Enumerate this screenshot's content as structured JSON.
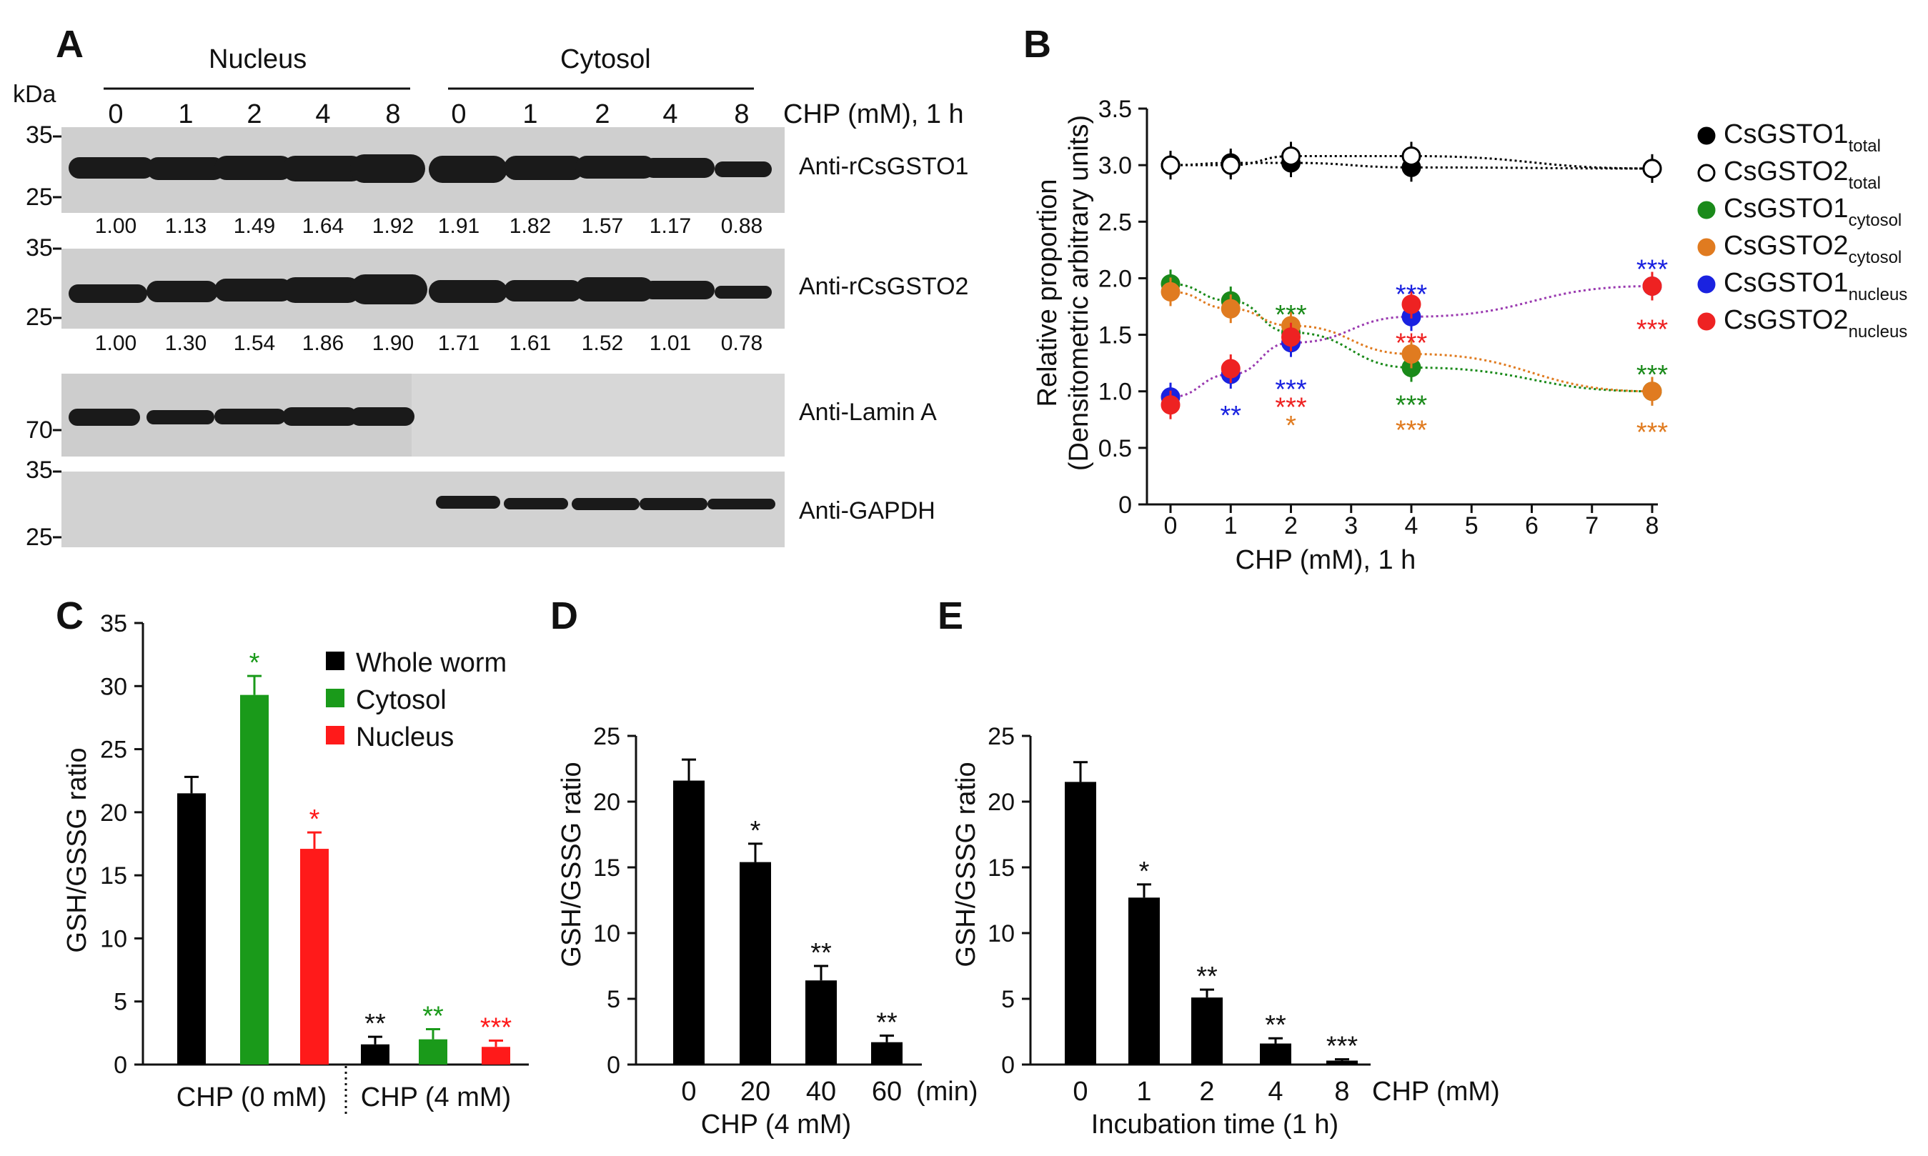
{
  "panels": {
    "a": "A",
    "b": "B",
    "c": "C",
    "d": "D",
    "e": "E"
  },
  "blot": {
    "nucleus_label": "Nucleus",
    "cytosol_label": "Cytosol",
    "kda_label": "kDa",
    "treatment_label": "CHP (mM), 1 h",
    "lanes": [
      "0",
      "1",
      "2",
      "4",
      "8",
      "0",
      "1",
      "2",
      "4",
      "8"
    ],
    "rows": [
      {
        "label": "Anti-rCsGSTO1",
        "markers": [
          "35",
          "25"
        ],
        "values": [
          "1.00",
          "1.13",
          "1.49",
          "1.64",
          "1.92",
          "1.91",
          "1.82",
          "1.57",
          "1.17",
          "0.88"
        ]
      },
      {
        "label": "Anti-rCsGSTO2",
        "markers": [
          "35",
          "25"
        ],
        "values": [
          "1.00",
          "1.30",
          "1.54",
          "1.86",
          "1.90",
          "1.71",
          "1.61",
          "1.52",
          "1.01",
          "0.78"
        ]
      },
      {
        "label": "Anti-Lamin A",
        "markers": [
          "70"
        ]
      },
      {
        "label": "Anti-GAPDH",
        "markers": [
          "35",
          "25"
        ]
      }
    ]
  },
  "chart_data": [
    {
      "panel": "B",
      "type": "scatter",
      "xlabel": "CHP (mM), 1 h",
      "ylabel_line1": "Relative proportion",
      "ylabel_line2": "(Densitometric arbitrary units)",
      "x_ticks": [
        "0",
        "1",
        "2",
        "3",
        "4",
        "5",
        "6",
        "7",
        "8"
      ],
      "y_ticks": [
        "0",
        "0.5",
        "1.0",
        "1.5",
        "2.0",
        "2.5",
        "3.0",
        "3.5"
      ],
      "xlim": [
        0,
        8
      ],
      "ylim": [
        0,
        3.5
      ],
      "x": [
        0,
        1,
        2,
        4,
        8
      ],
      "series": [
        {
          "name": "CsGSTO1",
          "sub": "total",
          "color": "#000000",
          "filled": true,
          "values": [
            3.0,
            3.02,
            3.02,
            2.98,
            2.97
          ]
        },
        {
          "name": "CsGSTO2",
          "sub": "total",
          "color": "#000000",
          "filled": false,
          "values": [
            3.0,
            3.0,
            3.08,
            3.08,
            2.97
          ]
        },
        {
          "name": "CsGSTO1",
          "sub": "cytosol",
          "color": "#1a8a1a",
          "filled": true,
          "values": [
            1.95,
            1.8,
            1.52,
            1.21,
            1.0
          ]
        },
        {
          "name": "CsGSTO2",
          "sub": "cytosol",
          "color": "#e07b20",
          "filled": true,
          "values": [
            1.88,
            1.73,
            1.58,
            1.33,
            1.0
          ]
        },
        {
          "name": "CsGSTO1",
          "sub": "nucleus",
          "color": "#1a22e0",
          "filled": true,
          "values": [
            0.95,
            1.15,
            1.43,
            1.66,
            1.93
          ]
        },
        {
          "name": "CsGSTO2",
          "sub": "nucleus",
          "color": "#ee2222",
          "filled": true,
          "values": [
            0.88,
            1.2,
            1.48,
            1.77,
            1.93
          ]
        }
      ],
      "annotations": [
        {
          "text": "***",
          "color": "#1a8a1a",
          "x": 2,
          "y": 1.7
        },
        {
          "text": "***",
          "color": "#1a22e0",
          "x": 2,
          "y": 1.04
        },
        {
          "text": "***",
          "color": "#ee2222",
          "x": 2,
          "y": 0.88
        },
        {
          "text": "*",
          "color": "#e07b20",
          "x": 2,
          "y": 0.72
        },
        {
          "text": "**",
          "color": "#1a22e0",
          "x": 1,
          "y": 0.81
        },
        {
          "text": "***",
          "color": "#1a22e0",
          "x": 4,
          "y": 1.88
        },
        {
          "text": "***",
          "color": "#ee2222",
          "x": 4,
          "y": 1.45
        },
        {
          "text": "***",
          "color": "#1a8a1a",
          "x": 4,
          "y": 0.9
        },
        {
          "text": "***",
          "color": "#e07b20",
          "x": 4,
          "y": 0.68
        },
        {
          "text": "***",
          "color": "#1a22e0",
          "x": 8,
          "y": 2.1
        },
        {
          "text": "***",
          "color": "#ee2222",
          "x": 8,
          "y": 1.57
        },
        {
          "text": "***",
          "color": "#1a8a1a",
          "x": 8,
          "y": 1.17
        },
        {
          "text": "***",
          "color": "#e07b20",
          "x": 8,
          "y": 0.66
        }
      ]
    },
    {
      "panel": "C",
      "type": "bar",
      "ylabel": "GSH/GSSG ratio",
      "ylim": [
        0,
        35
      ],
      "y_ticks": [
        "0",
        "5",
        "10",
        "15",
        "20",
        "25",
        "30",
        "35"
      ],
      "groups": [
        "CHP (0 mM)",
        "CHP (4 mM)"
      ],
      "series": [
        {
          "name": "Whole worm",
          "color": "#000000",
          "values": [
            21.5,
            1.6
          ],
          "errors": [
            1.3,
            0.6
          ],
          "sig": [
            "",
            "**"
          ]
        },
        {
          "name": "Cytosol",
          "color": "#1a9a1a",
          "values": [
            29.3,
            2.0
          ],
          "errors": [
            1.5,
            0.8
          ],
          "sig": [
            "*",
            "**"
          ]
        },
        {
          "name": "Nucleus",
          "color": "#ff1a1a",
          "values": [
            17.1,
            1.4
          ],
          "errors": [
            1.3,
            0.5
          ],
          "sig": [
            "*",
            "***"
          ]
        }
      ]
    },
    {
      "panel": "D",
      "type": "bar",
      "ylabel": "GSH/GSSG ratio",
      "xlabel": "CHP (4 mM)",
      "ylim": [
        0,
        25
      ],
      "y_ticks": [
        "0",
        "5",
        "10",
        "15",
        "20",
        "25"
      ],
      "categories": [
        "0",
        "20",
        "40",
        "60"
      ],
      "unit_label": "(min)",
      "values": [
        21.6,
        15.4,
        6.4,
        1.7
      ],
      "errors": [
        1.6,
        1.4,
        1.1,
        0.5
      ],
      "sig": [
        "",
        "*",
        "**",
        "**"
      ]
    },
    {
      "panel": "E",
      "type": "bar",
      "ylabel": "GSH/GSSG ratio",
      "xlabel": "Incubation time (1 h)",
      "ylim": [
        0,
        25
      ],
      "y_ticks": [
        "0",
        "5",
        "10",
        "15",
        "20",
        "25"
      ],
      "categories": [
        "0",
        "1",
        "2",
        "4",
        "8"
      ],
      "unit_label": "CHP (mM)",
      "values": [
        21.5,
        12.7,
        5.1,
        1.6,
        0.3
      ],
      "errors": [
        1.5,
        1.0,
        0.6,
        0.4,
        0.1
      ],
      "sig": [
        "",
        "*",
        "**",
        "**",
        "***"
      ]
    }
  ]
}
